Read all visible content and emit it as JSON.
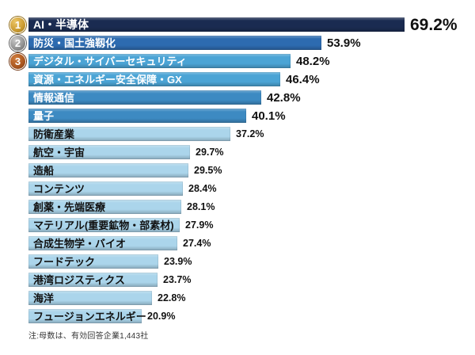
{
  "chart_data": {
    "type": "bar",
    "orientation": "horizontal",
    "unit": "%",
    "xlim": [
      0,
      72
    ],
    "legend": "none",
    "grid": false,
    "title": "",
    "note": "注:母数は、有効回答企業1,443社",
    "categories": [
      "AI・半導体",
      "防災・国土強靱化",
      "デジタル・サイバーセキュリティ",
      "資源・エネルギー安全保障・GX",
      "情報通信",
      "量子",
      "防衛産業",
      "航空・宇宙",
      "造船",
      "コンテンツ",
      "創薬・先端医療",
      "マテリアル(重要鉱物・部素材)",
      "合成生物学・バイオ",
      "フードテック",
      "港湾ロジスティクス",
      "海洋",
      "フュージョンエネルギー"
    ],
    "values": [
      69.2,
      53.9,
      48.2,
      46.4,
      42.8,
      40.1,
      37.2,
      29.7,
      29.5,
      28.4,
      28.1,
      27.9,
      27.4,
      23.9,
      23.7,
      22.8,
      20.9
    ],
    "items": [
      {
        "label": "AI・半導体",
        "value": 69.2,
        "display": "69.2%",
        "rank": 1,
        "bar_color": "#1a2b51",
        "label_color": "#ffffff",
        "value_size": "lg",
        "label_size": 14
      },
      {
        "label": "防災・国土強靱化",
        "value": 53.9,
        "display": "53.9%",
        "rank": 2,
        "bar_color": "#2d6bb0",
        "label_color": "#ffffff",
        "value_size": "md",
        "label_size": 13
      },
      {
        "label": "デジタル・サイバーセキュリティ",
        "value": 48.2,
        "display": "48.2%",
        "rank": 3,
        "bar_color": "#4ba4d5",
        "label_color": "#ffffff",
        "value_size": "md",
        "label_size": 13
      },
      {
        "label": "資源・エネルギー安全保障・GX",
        "value": 46.4,
        "display": "46.4%",
        "rank": null,
        "bar_color": "#4ba4d5",
        "label_color": "#ffffff",
        "value_size": "md",
        "label_size": 13
      },
      {
        "label": "情報通信",
        "value": 42.8,
        "display": "42.8%",
        "rank": null,
        "bar_color": "#3d8ac2",
        "label_color": "#ffffff",
        "value_size": "md",
        "label_size": 13
      },
      {
        "label": "量子",
        "value": 40.1,
        "display": "40.1%",
        "rank": null,
        "bar_color": "#3d8ac2",
        "label_color": "#ffffff",
        "value_size": "md",
        "label_size": 13
      },
      {
        "label": "防衛産業",
        "value": 37.2,
        "display": "37.2%",
        "rank": null,
        "bar_color": "#abd5eb",
        "label_color": "#111111",
        "value_size": "sm",
        "label_size": 13
      },
      {
        "label": "航空・宇宙",
        "value": 29.7,
        "display": "29.7%",
        "rank": null,
        "bar_color": "#abd5eb",
        "label_color": "#111111",
        "value_size": "sm",
        "label_size": 13
      },
      {
        "label": "造船",
        "value": 29.5,
        "display": "29.5%",
        "rank": null,
        "bar_color": "#abd5eb",
        "label_color": "#111111",
        "value_size": "sm",
        "label_size": 13
      },
      {
        "label": "コンテンツ",
        "value": 28.4,
        "display": "28.4%",
        "rank": null,
        "bar_color": "#abd5eb",
        "label_color": "#111111",
        "value_size": "sm",
        "label_size": 13
      },
      {
        "label": "創薬・先端医療",
        "value": 28.1,
        "display": "28.1%",
        "rank": null,
        "bar_color": "#abd5eb",
        "label_color": "#111111",
        "value_size": "sm",
        "label_size": 13
      },
      {
        "label": "マテリアル(重要鉱物・部素材)",
        "value": 27.9,
        "display": "27.9%",
        "rank": null,
        "bar_color": "#abd5eb",
        "label_color": "#111111",
        "value_size": "sm",
        "label_size": 13
      },
      {
        "label": "合成生物学・バイオ",
        "value": 27.4,
        "display": "27.4%",
        "rank": null,
        "bar_color": "#abd5eb",
        "label_color": "#111111",
        "value_size": "sm",
        "label_size": 13
      },
      {
        "label": "フードテック",
        "value": 23.9,
        "display": "23.9%",
        "rank": null,
        "bar_color": "#abd5eb",
        "label_color": "#111111",
        "value_size": "sm",
        "label_size": 13
      },
      {
        "label": "港湾ロジスティクス",
        "value": 23.7,
        "display": "23.7%",
        "rank": null,
        "bar_color": "#abd5eb",
        "label_color": "#111111",
        "value_size": "sm",
        "label_size": 13
      },
      {
        "label": "海洋",
        "value": 22.8,
        "display": "22.8%",
        "rank": null,
        "bar_color": "#abd5eb",
        "label_color": "#111111",
        "value_size": "sm",
        "label_size": 13
      },
      {
        "label": "フュージョンエネルギー",
        "value": 20.9,
        "display": "20.9%",
        "rank": null,
        "bar_color": "#abd5eb",
        "label_color": "#111111",
        "value_size": "sm",
        "label_size": 13
      }
    ],
    "rank_badges": [
      {
        "rank": 1,
        "name": "gold",
        "light": "#ecc667",
        "base": "#c9992f",
        "dark": "#8f6a14"
      },
      {
        "rank": 2,
        "name": "silver",
        "light": "#c9c9c9",
        "base": "#8f8f8f",
        "dark": "#5c5c5c"
      },
      {
        "rank": 3,
        "name": "bronze",
        "light": "#d07c3c",
        "base": "#a8551e",
        "dark": "#6f3410"
      }
    ]
  }
}
